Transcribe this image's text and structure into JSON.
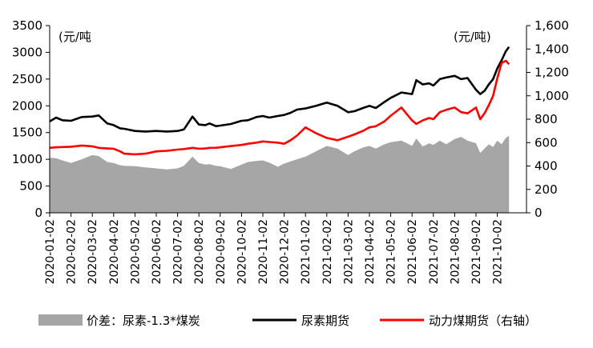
{
  "chart_data": {
    "type": "area",
    "left_unit": "(元/吨",
    "right_unit": "(元/吨)",
    "y_left": {
      "min": 0,
      "max": 3500,
      "ticks": [
        "0",
        "500",
        "1000",
        "1500",
        "2000",
        "2500",
        "3000",
        "3500"
      ]
    },
    "y_right": {
      "min": 0,
      "max": 1600,
      "ticks": [
        "0",
        "200",
        "400",
        "600",
        "800",
        "1,000",
        "1,200",
        "1,400",
        "1,600"
      ]
    },
    "x_ticks": [
      "2020-01-02",
      "2020-02-02",
      "2020-03-02",
      "2020-04-02",
      "2020-05-02",
      "2020-06-02",
      "2020-07-02",
      "2020-08-02",
      "2020-09-02",
      "2020-10-02",
      "2020-11-02",
      "2020-12-02",
      "2021-01-02",
      "2021-02-02",
      "2021-03-02",
      "2021-04-02",
      "2021-05-02",
      "2021-06-02",
      "2021-07-02",
      "2021-08-02",
      "2021-09-02",
      "2021-10-02"
    ],
    "x_range": [
      0,
      21.55
    ],
    "series": [
      {
        "name": "价差：尿素-1.3*煤炭",
        "type": "area",
        "axis": "left",
        "color": "#a6a6a6",
        "x": [
          0,
          0.3,
          0.6,
          1.0,
          1.5,
          2.0,
          2.3,
          2.7,
          3.0,
          3.3,
          3.5,
          4.0,
          4.5,
          5.0,
          5.5,
          6.0,
          6.3,
          6.7,
          7.0,
          7.3,
          7.5,
          7.8,
          8.0,
          8.5,
          9.0,
          9.3,
          9.7,
          10.0,
          10.3,
          10.7,
          11.0,
          11.3,
          11.6,
          12.0,
          12.5,
          13.0,
          13.5,
          14.0,
          14.3,
          14.7,
          15.0,
          15.3,
          15.7,
          16.0,
          16.5,
          17.0,
          17.2,
          17.5,
          17.8,
          18.0,
          18.3,
          18.6,
          19.0,
          19.3,
          19.6,
          20.0,
          20.2,
          20.4,
          20.6,
          20.8,
          21.0,
          21.2,
          21.4,
          21.55
        ],
        "values": [
          1030,
          1020,
          980,
          930,
          1000,
          1080,
          1060,
          950,
          930,
          890,
          880,
          870,
          850,
          830,
          810,
          830,
          880,
          1050,
          930,
          900,
          910,
          880,
          870,
          820,
          900,
          950,
          970,
          980,
          940,
          860,
          920,
          960,
          1000,
          1050,
          1150,
          1250,
          1200,
          1080,
          1150,
          1220,
          1250,
          1200,
          1280,
          1320,
          1350,
          1250,
          1390,
          1240,
          1300,
          1270,
          1350,
          1280,
          1380,
          1420,
          1350,
          1300,
          1120,
          1200,
          1280,
          1230,
          1350,
          1280,
          1400,
          1440
        ]
      },
      {
        "name": "尿素期货",
        "type": "line",
        "axis": "left",
        "color": "#000000",
        "x": [
          0,
          0.3,
          0.6,
          1.0,
          1.5,
          2.0,
          2.3,
          2.7,
          3.0,
          3.3,
          3.5,
          4.0,
          4.5,
          5.0,
          5.5,
          6.0,
          6.3,
          6.7,
          7.0,
          7.3,
          7.5,
          7.8,
          8.0,
          8.5,
          9.0,
          9.3,
          9.7,
          10.0,
          10.3,
          10.7,
          11.0,
          11.3,
          11.6,
          12.0,
          12.5,
          13.0,
          13.5,
          14.0,
          14.3,
          14.7,
          15.0,
          15.3,
          15.7,
          16.0,
          16.5,
          17.0,
          17.2,
          17.5,
          17.8,
          18.0,
          18.3,
          18.6,
          19.0,
          19.3,
          19.6,
          20.0,
          20.2,
          20.4,
          20.6,
          20.8,
          21.0,
          21.2,
          21.4,
          21.55
        ],
        "values": [
          1710,
          1780,
          1730,
          1720,
          1790,
          1800,
          1820,
          1670,
          1640,
          1580,
          1570,
          1530,
          1520,
          1530,
          1520,
          1530,
          1560,
          1800,
          1650,
          1640,
          1670,
          1620,
          1630,
          1660,
          1720,
          1730,
          1790,
          1810,
          1780,
          1810,
          1830,
          1870,
          1930,
          1950,
          2000,
          2060,
          2000,
          1880,
          1900,
          1960,
          2000,
          1960,
          2070,
          2150,
          2250,
          2220,
          2480,
          2400,
          2420,
          2380,
          2500,
          2530,
          2560,
          2500,
          2520,
          2300,
          2220,
          2280,
          2400,
          2500,
          2700,
          2850,
          3020,
          3100
        ]
      },
      {
        "name": "动力煤期货（右轴）",
        "type": "line",
        "axis": "right",
        "color": "#ff0000",
        "x": [
          0,
          0.3,
          0.6,
          1.0,
          1.5,
          2.0,
          2.3,
          2.7,
          3.0,
          3.3,
          3.5,
          4.0,
          4.5,
          5.0,
          5.5,
          6.0,
          6.3,
          6.7,
          7.0,
          7.3,
          7.5,
          7.8,
          8.0,
          8.5,
          9.0,
          9.3,
          9.7,
          10.0,
          10.3,
          10.7,
          11.0,
          11.3,
          11.6,
          12.0,
          12.5,
          13.0,
          13.5,
          14.0,
          14.3,
          14.7,
          15.0,
          15.3,
          15.7,
          16.0,
          16.5,
          17.0,
          17.2,
          17.5,
          17.8,
          18.0,
          18.3,
          18.6,
          19.0,
          19.3,
          19.6,
          20.0,
          20.2,
          20.4,
          20.6,
          20.8,
          21.0,
          21.2,
          21.4,
          21.55
        ],
        "values": [
          555,
          560,
          562,
          565,
          575,
          568,
          555,
          550,
          548,
          525,
          505,
          500,
          505,
          525,
          530,
          540,
          545,
          555,
          548,
          550,
          555,
          555,
          560,
          570,
          580,
          590,
          600,
          610,
          605,
          600,
          590,
          620,
          660,
          730,
          680,
          640,
          620,
          650,
          670,
          700,
          730,
          740,
          780,
          830,
          900,
          790,
          760,
          790,
          810,
          800,
          860,
          880,
          900,
          860,
          850,
          900,
          800,
          850,
          920,
          1000,
          1150,
          1280,
          1300,
          1270
        ]
      }
    ]
  }
}
